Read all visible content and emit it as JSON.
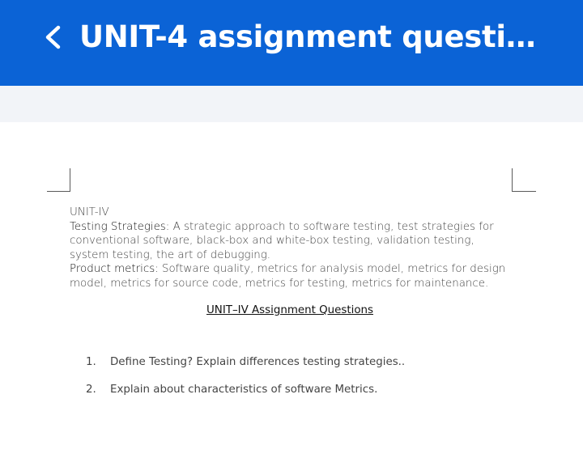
{
  "header": {
    "title": "UNIT-4 assignment question…",
    "back_icon": "chevron-left-icon",
    "color": "#0b63d6"
  },
  "document": {
    "unit_heading": "UNIT-IV",
    "testing_label": "Testing Strategies:",
    "testing_text": " A strategic approach to software testing, test strategies for conventional software, black-box and white-box testing, validation testing, system testing, the art of debugging.",
    "metrics_label": "Product metrics:",
    "metrics_text": " Software quality, metrics for analysis model, metrics for design model, metrics for source code, metrics for testing, metrics for maintenance.",
    "assignment_title": "UNIT–IV Assignment Questions",
    "questions": [
      {
        "number": "1.",
        "text": "Define Testing? Explain differences testing strategies.."
      },
      {
        "number": "2.",
        "text": "Explain about characteristics of software Metrics."
      }
    ]
  }
}
